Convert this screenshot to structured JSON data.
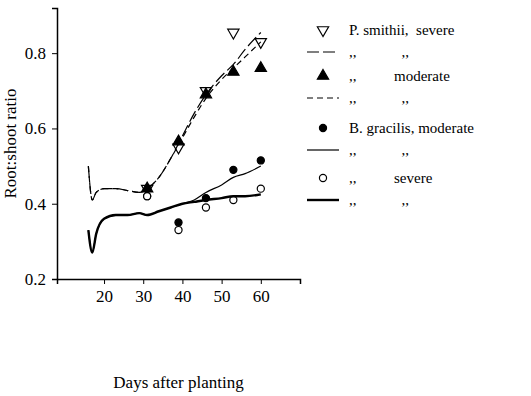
{
  "chart_data": {
    "type": "scatter",
    "x_label": "Days after planting",
    "y_label": "Root:shoot ratio",
    "xlim": [
      8,
      70
    ],
    "xticks": [
      20,
      30,
      40,
      50,
      60
    ],
    "ylim": [
      0.2,
      0.92
    ],
    "yticks": [
      0.2,
      0.4,
      0.6,
      0.8
    ],
    "grid": false,
    "legend": "upper right",
    "series": [
      {
        "name": "P. smithii,  severe",
        "type": "scatter",
        "marker": "open-triangle-down",
        "color": "#000000",
        "x": [
          31,
          39,
          46,
          53,
          60
        ],
        "values": [
          0.44,
          0.55,
          0.7,
          0.855,
          0.83
        ]
      },
      {
        "name": ",,            ,,",
        "type": "line",
        "line_style": "longdash",
        "color": "#000000",
        "x": [
          16,
          17,
          18,
          20,
          23,
          26,
          29,
          31,
          34,
          37,
          40,
          43,
          46,
          50,
          53,
          56,
          60
        ],
        "values": [
          0.5,
          0.41,
          0.43,
          0.44,
          0.44,
          0.435,
          0.43,
          0.44,
          0.47,
          0.52,
          0.58,
          0.64,
          0.69,
          0.74,
          0.77,
          0.81,
          0.855
        ]
      },
      {
        "name": ",,          moderate",
        "type": "scatter",
        "marker": "triangle-up",
        "color": "#000000",
        "x": [
          31,
          39,
          46,
          53,
          60
        ],
        "values": [
          0.44,
          0.565,
          0.69,
          0.75,
          0.76
        ]
      },
      {
        "name": ",,            ,,",
        "type": "line",
        "line_style": "dashed",
        "color": "#000000",
        "x": [
          16,
          17,
          18,
          20,
          23,
          26,
          29,
          31,
          34,
          37,
          40,
          43,
          46,
          50,
          53,
          56,
          60
        ],
        "values": [
          0.5,
          0.41,
          0.43,
          0.44,
          0.44,
          0.435,
          0.43,
          0.44,
          0.47,
          0.52,
          0.575,
          0.63,
          0.68,
          0.73,
          0.76,
          0.79,
          0.83
        ]
      },
      {
        "name": "B. gracilis, moderate",
        "type": "scatter",
        "marker": "circle",
        "color": "#000000",
        "x": [
          31,
          39,
          46,
          53,
          60
        ],
        "values": [
          0.42,
          0.35,
          0.415,
          0.49,
          0.515
        ]
      },
      {
        "name": ",,            ,,",
        "type": "line",
        "line_style": "solid",
        "color": "#000000",
        "x": [
          16,
          17,
          18,
          20,
          23,
          26,
          29,
          31,
          34,
          37,
          40,
          43,
          46,
          50,
          53,
          56,
          60
        ],
        "values": [
          0.33,
          0.27,
          0.32,
          0.36,
          0.37,
          0.37,
          0.375,
          0.37,
          0.38,
          0.39,
          0.4,
          0.41,
          0.43,
          0.45,
          0.47,
          0.48,
          0.5
        ]
      },
      {
        "name": ",,          severe",
        "type": "scatter",
        "marker": "open-circle",
        "color": "#000000",
        "x": [
          31,
          39,
          46,
          53,
          60
        ],
        "values": [
          0.42,
          0.33,
          0.39,
          0.41,
          0.44
        ]
      },
      {
        "name": ",,            ,,",
        "type": "line",
        "line_style": "thick",
        "color": "#000000",
        "x": [
          16,
          17,
          18,
          20,
          23,
          26,
          29,
          31,
          34,
          37,
          40,
          43,
          46,
          50,
          53,
          56,
          60
        ],
        "values": [
          0.33,
          0.27,
          0.32,
          0.36,
          0.37,
          0.37,
          0.375,
          0.37,
          0.38,
          0.39,
          0.4,
          0.405,
          0.41,
          0.415,
          0.42,
          0.42,
          0.425
        ]
      }
    ]
  }
}
